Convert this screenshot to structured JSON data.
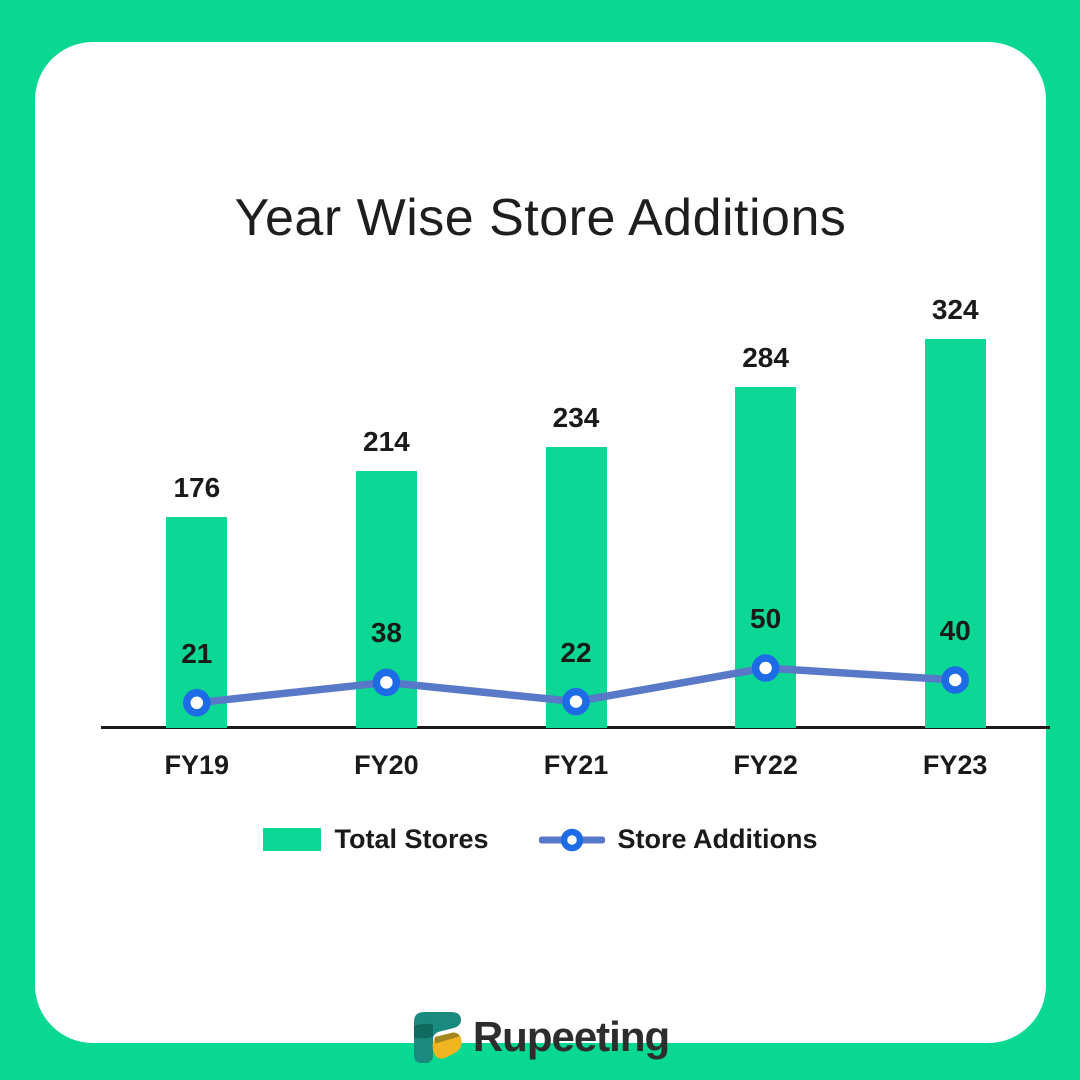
{
  "page": {
    "frame_color": "#09D893",
    "card_color": "#FFFFFF"
  },
  "title": "Year Wise Store Additions",
  "chart_data": {
    "type": "combo-bar-line",
    "title": "Year Wise Store Additions",
    "categories": [
      "FY19",
      "FY20",
      "FY21",
      "FY22",
      "FY23"
    ],
    "series": [
      {
        "name": "Total Stores",
        "type": "bar",
        "color": "#0DD794",
        "values": [
          176,
          214,
          234,
          284,
          324
        ]
      },
      {
        "name": "Store Additions",
        "type": "line",
        "line_color": "#5878C8",
        "marker_ring_color": "#1E6BE6",
        "marker_fill": "#FFFFFF",
        "values": [
          21,
          38,
          22,
          50,
          40
        ]
      }
    ],
    "xlabel": "",
    "ylabel": "",
    "ylim": [
      0,
      355
    ],
    "grid": false,
    "y_axis_shown": false,
    "axis_line_color": "#1A1A1A",
    "data_labels": true,
    "legend_position": "bottom"
  },
  "legend": {
    "items": [
      {
        "label": "Total Stores",
        "swatch": "bar"
      },
      {
        "label": "Store Additions",
        "swatch": "line-marker"
      }
    ]
  },
  "logo": {
    "text": "Rupeeting",
    "text_color": "#2D2D2D",
    "icon_colors": {
      "teal": "#1B8A7E",
      "dark_teal": "#0F6A5F",
      "yellow": "#F0B51F",
      "dark_yellow": "#A3861F"
    }
  }
}
